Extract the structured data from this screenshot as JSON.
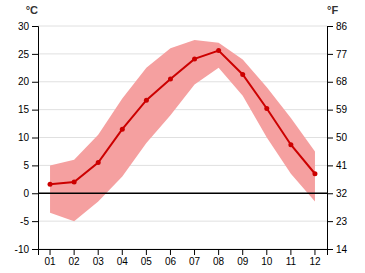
{
  "chart_data": {
    "type": "line",
    "categories": [
      "01",
      "02",
      "03",
      "04",
      "05",
      "06",
      "07",
      "08",
      "09",
      "10",
      "11",
      "12"
    ],
    "series": [
      {
        "type": "band",
        "color": "#f5a0a0",
        "lower": [
          -3.5,
          -5.0,
          -1.5,
          3.0,
          9.0,
          14.0,
          19.5,
          22.5,
          17.5,
          10.0,
          3.5,
          -1.5
        ],
        "upper": [
          5.0,
          6.0,
          10.5,
          17.0,
          22.5,
          26.0,
          27.5,
          27.0,
          24.0,
          19.0,
          13.5,
          7.5
        ]
      },
      {
        "type": "line",
        "color": "#cc0000",
        "marker": "circle",
        "values": [
          1.6,
          2.0,
          5.5,
          11.5,
          16.7,
          20.5,
          24.1,
          25.6,
          21.3,
          15.2,
          8.7,
          3.5
        ]
      }
    ],
    "reference_lines": [
      {
        "value": 0,
        "color": "#000000"
      }
    ],
    "ylabel": "°C",
    "y2label": "°F",
    "ylim": [
      -10,
      30
    ],
    "yticks": [
      -10,
      -5,
      0,
      5,
      10,
      15,
      20,
      25,
      30
    ],
    "y2lim": [
      14,
      86
    ],
    "y2ticks": [
      14,
      23,
      32,
      41,
      50,
      59,
      68,
      77,
      86
    ],
    "grid": true
  }
}
